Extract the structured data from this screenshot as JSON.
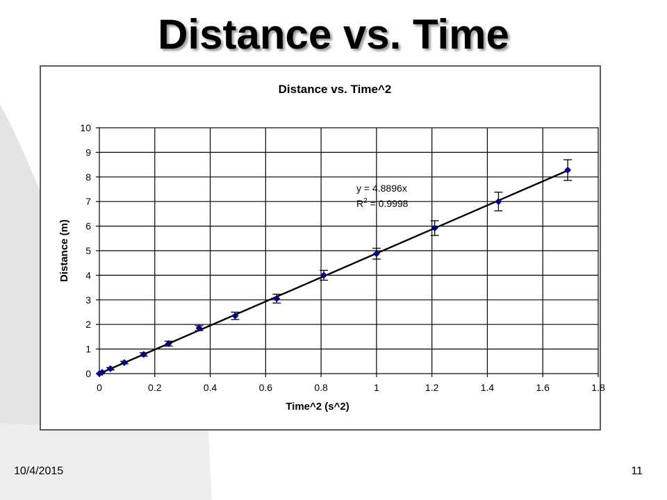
{
  "slide": {
    "title": "Distance vs. Time",
    "date": "10/4/2015",
    "page_number": "11"
  },
  "chart_data": {
    "type": "scatter",
    "title": "Distance vs. Time^2",
    "xlabel": "Time^2 (s^2)",
    "ylabel": "Distance (m)",
    "xlim": [
      0,
      1.8
    ],
    "ylim": [
      0,
      10
    ],
    "xticks": [
      "0",
      "0.2",
      "0.4",
      "0.6",
      "0.8",
      "1",
      "1.2",
      "1.4",
      "1.6",
      "1.8"
    ],
    "yticks": [
      "0",
      "1",
      "2",
      "3",
      "4",
      "5",
      "6",
      "7",
      "8",
      "9",
      "10"
    ],
    "grid": true,
    "series": [
      {
        "x": [
          0,
          0.01,
          0.04,
          0.09,
          0.16,
          0.25,
          0.36,
          0.49,
          0.64,
          0.81,
          1.0,
          1.21,
          1.44,
          1.69
        ],
        "y": [
          0,
          0.05,
          0.2,
          0.45,
          0.78,
          1.22,
          1.85,
          2.35,
          3.05,
          4.0,
          4.88,
          5.92,
          7.0,
          8.28
        ],
        "error": [
          0,
          0,
          0.05,
          0.05,
          0.07,
          0.1,
          0.1,
          0.15,
          0.18,
          0.2,
          0.22,
          0.3,
          0.38,
          0.42
        ]
      }
    ],
    "trendline": {
      "slope": 4.8896,
      "x_range": [
        0,
        1.69
      ],
      "equation": "y = 4.8896x",
      "r_squared_label": "R",
      "r_squared_exponent": "2",
      "r_squared_value": " = 0.9998"
    },
    "colors": {
      "marker": "#000080",
      "line": "#000000",
      "grid": "#000000",
      "text": "#000000"
    }
  }
}
